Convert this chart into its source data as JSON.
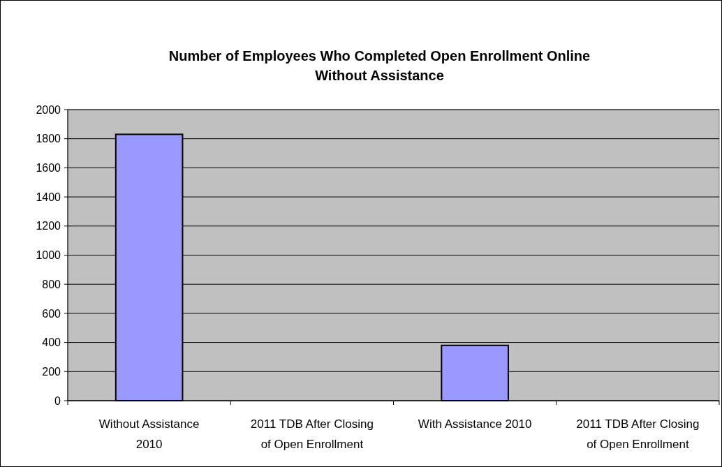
{
  "chart_data": {
    "type": "bar",
    "title": "Number of Employees Who Completed Open Enrollment Online Without Assistance",
    "categories": [
      "Without Assistance 2010",
      "2011 TDB After Closing of Open Enrollment",
      "With Assistance 2010",
      "2011 TDB After Closing of Open Enrollment"
    ],
    "values": [
      1830,
      null,
      380,
      null
    ],
    "color": "#9999ff",
    "ylim": [
      0,
      2000
    ],
    "yticks": [
      0,
      200,
      400,
      600,
      800,
      1000,
      1200,
      1400,
      1600,
      1800,
      2000
    ],
    "grid": "y"
  }
}
